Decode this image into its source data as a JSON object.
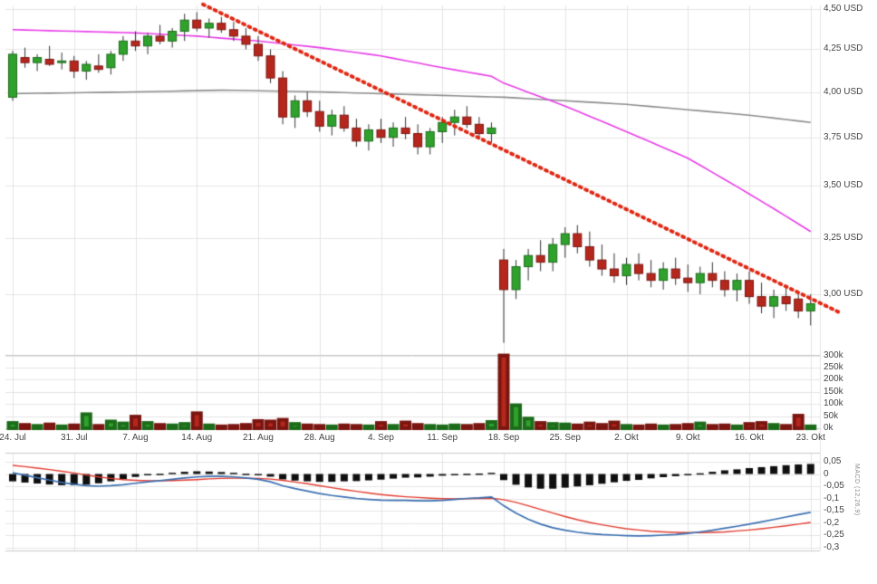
{
  "chart_data": {
    "type": "candlestick",
    "currency": "USD",
    "x_axis": {
      "num_candles": 66,
      "tick_labels": [
        "24. Jul",
        "31. Jul",
        "7. Aug",
        "14. Aug",
        "21. Aug",
        "28. Aug",
        "4. Sep",
        "11. Sep",
        "18. Sep",
        "25. Sep",
        "2. Okt",
        "9. Okt",
        "16. Okt",
        "23. Okt"
      ],
      "tick_indices": [
        0,
        5,
        10,
        15,
        20,
        25,
        30,
        35,
        40,
        45,
        50,
        55,
        60,
        65
      ]
    },
    "price_axis": {
      "scale": "log",
      "side": "right",
      "tick_values": [
        4.5,
        4.25,
        4.0,
        3.75,
        3.5,
        3.25,
        3.0
      ],
      "tick_labels": [
        "4,50 USD",
        "4,25 USD",
        "4,00 USD",
        "3,75 USD",
        "3,50 USD",
        "3,25 USD",
        "3,00 USD"
      ]
    },
    "candles_ohlc": [
      [
        3.97,
        4.24,
        3.95,
        4.22
      ],
      [
        4.2,
        4.26,
        4.14,
        4.17
      ],
      [
        4.17,
        4.22,
        4.12,
        4.2
      ],
      [
        4.19,
        4.27,
        4.15,
        4.16
      ],
      [
        4.17,
        4.23,
        4.13,
        4.18
      ],
      [
        4.18,
        4.21,
        4.08,
        4.12
      ],
      [
        4.12,
        4.18,
        4.07,
        4.16
      ],
      [
        4.15,
        4.22,
        4.11,
        4.13
      ],
      [
        4.14,
        4.24,
        4.1,
        4.22
      ],
      [
        4.22,
        4.33,
        4.18,
        4.3
      ],
      [
        4.3,
        4.36,
        4.24,
        4.27
      ],
      [
        4.27,
        4.35,
        4.22,
        4.33
      ],
      [
        4.33,
        4.4,
        4.28,
        4.3
      ],
      [
        4.3,
        4.38,
        4.26,
        4.36
      ],
      [
        4.36,
        4.47,
        4.3,
        4.43
      ],
      [
        4.43,
        4.48,
        4.36,
        4.38
      ],
      [
        4.38,
        4.44,
        4.32,
        4.41
      ],
      [
        4.41,
        4.45,
        4.35,
        4.37
      ],
      [
        4.37,
        4.42,
        4.3,
        4.33
      ],
      [
        4.33,
        4.38,
        4.25,
        4.28
      ],
      [
        4.28,
        4.33,
        4.18,
        4.21
      ],
      [
        4.21,
        4.25,
        4.05,
        4.08
      ],
      [
        4.08,
        4.12,
        3.82,
        3.86
      ],
      [
        3.86,
        3.98,
        3.8,
        3.95
      ],
      [
        3.95,
        4.0,
        3.86,
        3.89
      ],
      [
        3.89,
        3.95,
        3.78,
        3.81
      ],
      [
        3.81,
        3.9,
        3.76,
        3.87
      ],
      [
        3.87,
        3.92,
        3.78,
        3.8
      ],
      [
        3.8,
        3.85,
        3.7,
        3.73
      ],
      [
        3.73,
        3.82,
        3.68,
        3.79
      ],
      [
        3.79,
        3.85,
        3.72,
        3.75
      ],
      [
        3.75,
        3.83,
        3.7,
        3.8
      ],
      [
        3.8,
        3.86,
        3.74,
        3.77
      ],
      [
        3.77,
        3.82,
        3.66,
        3.7
      ],
      [
        3.7,
        3.8,
        3.66,
        3.78
      ],
      [
        3.78,
        3.86,
        3.72,
        3.83
      ],
      [
        3.83,
        3.9,
        3.76,
        3.86
      ],
      [
        3.86,
        3.92,
        3.8,
        3.82
      ],
      [
        3.82,
        3.86,
        3.74,
        3.77
      ],
      [
        3.77,
        3.83,
        3.72,
        3.8
      ],
      [
        3.15,
        3.2,
        2.8,
        3.02
      ],
      [
        3.02,
        3.15,
        2.98,
        3.12
      ],
      [
        3.12,
        3.2,
        3.06,
        3.17
      ],
      [
        3.17,
        3.24,
        3.1,
        3.14
      ],
      [
        3.14,
        3.25,
        3.1,
        3.22
      ],
      [
        3.22,
        3.3,
        3.16,
        3.27
      ],
      [
        3.27,
        3.31,
        3.18,
        3.21
      ],
      [
        3.21,
        3.28,
        3.12,
        3.15
      ],
      [
        3.15,
        3.22,
        3.08,
        3.11
      ],
      [
        3.11,
        3.18,
        3.05,
        3.08
      ],
      [
        3.08,
        3.16,
        3.04,
        3.13
      ],
      [
        3.13,
        3.18,
        3.06,
        3.09
      ],
      [
        3.09,
        3.15,
        3.03,
        3.06
      ],
      [
        3.06,
        3.14,
        3.02,
        3.11
      ],
      [
        3.11,
        3.16,
        3.04,
        3.07
      ],
      [
        3.07,
        3.13,
        3.01,
        3.05
      ],
      [
        3.05,
        3.12,
        3.0,
        3.09
      ],
      [
        3.09,
        3.14,
        3.03,
        3.06
      ],
      [
        3.06,
        3.1,
        2.99,
        3.02
      ],
      [
        3.02,
        3.09,
        2.97,
        3.06
      ],
      [
        3.06,
        3.1,
        2.96,
        2.99
      ],
      [
        2.99,
        3.05,
        2.92,
        2.95
      ],
      [
        2.95,
        3.02,
        2.9,
        2.99
      ],
      [
        2.99,
        3.03,
        2.93,
        2.96
      ],
      [
        2.98,
        3.01,
        2.9,
        2.93
      ],
      [
        2.93,
        3.0,
        2.87,
        2.96
      ]
    ],
    "volume_panel": {
      "unit": "k",
      "values_k": [
        22,
        14,
        10,
        16,
        8,
        12,
        58,
        10,
        28,
        20,
        48,
        22,
        14,
        12,
        18,
        62,
        12,
        8,
        10,
        14,
        30,
        28,
        35,
        18,
        12,
        10,
        8,
        12,
        10,
        8,
        22,
        10,
        24,
        14,
        10,
        8,
        12,
        10,
        14,
        26,
        300,
        95,
        40,
        22,
        18,
        16,
        12,
        20,
        14,
        24,
        10,
        8,
        12,
        8,
        10,
        14,
        20,
        10,
        12,
        8,
        18,
        22,
        14,
        10,
        52,
        8
      ],
      "tick_values": [
        300,
        250,
        200,
        150,
        100,
        50,
        0
      ],
      "tick_labels": [
        "300k",
        "250k",
        "200k",
        "150k",
        "100k",
        "50k",
        "0k"
      ]
    },
    "overlays": {
      "trendline": {
        "style": "thick-dotted",
        "color": "#e02814",
        "from": {
          "index": 15.5,
          "price": 4.53
        },
        "to": {
          "index": 67.5,
          "price": 2.92
        }
      },
      "ma_fast": {
        "color": "#e73ce7",
        "points": [
          [
            0,
            4.37
          ],
          [
            5,
            4.36
          ],
          [
            10,
            4.35
          ],
          [
            15,
            4.33
          ],
          [
            20,
            4.3
          ],
          [
            25,
            4.26
          ],
          [
            30,
            4.21
          ],
          [
            35,
            4.14
          ],
          [
            39,
            4.09
          ],
          [
            40,
            4.05
          ],
          [
            45,
            3.92
          ],
          [
            50,
            3.78
          ],
          [
            55,
            3.64
          ],
          [
            60,
            3.46
          ],
          [
            65,
            3.28
          ]
        ]
      },
      "ma_slow": {
        "color": "#8c8c8c",
        "points": [
          [
            0,
            3.99
          ],
          [
            10,
            4.0
          ],
          [
            17,
            4.01
          ],
          [
            25,
            4.0
          ],
          [
            30,
            3.99
          ],
          [
            35,
            3.98
          ],
          [
            40,
            3.97
          ],
          [
            45,
            3.95
          ],
          [
            50,
            3.93
          ],
          [
            55,
            3.9
          ],
          [
            60,
            3.87
          ],
          [
            65,
            3.83
          ]
        ]
      }
    },
    "macd_panel": {
      "label": "MACD (12,26,9)",
      "tick_values": [
        0.05,
        0,
        -0.05,
        -0.1,
        -0.15,
        -0.2,
        -0.25,
        -0.3
      ],
      "tick_labels": [
        "0,05",
        "0",
        "-0,05",
        "-0,1",
        "-0,15",
        "-0,2",
        "-0,25",
        "-0,3"
      ],
      "macd_line": [
        0.005,
        -0.005,
        -0.015,
        -0.025,
        -0.035,
        -0.042,
        -0.048,
        -0.05,
        -0.048,
        -0.044,
        -0.038,
        -0.032,
        -0.027,
        -0.022,
        -0.016,
        -0.012,
        -0.01,
        -0.01,
        -0.012,
        -0.016,
        -0.022,
        -0.032,
        -0.048,
        -0.06,
        -0.07,
        -0.08,
        -0.088,
        -0.094,
        -0.1,
        -0.104,
        -0.107,
        -0.108,
        -0.108,
        -0.11,
        -0.11,
        -0.108,
        -0.104,
        -0.1,
        -0.098,
        -0.094,
        -0.13,
        -0.16,
        -0.185,
        -0.205,
        -0.22,
        -0.23,
        -0.238,
        -0.244,
        -0.248,
        -0.25,
        -0.252,
        -0.253,
        -0.252,
        -0.25,
        -0.248,
        -0.243,
        -0.237,
        -0.23,
        -0.222,
        -0.214,
        -0.205,
        -0.196,
        -0.186,
        -0.176,
        -0.166,
        -0.157
      ],
      "signal_line": [
        0.035,
        0.03,
        0.024,
        0.018,
        0.011,
        0.004,
        -0.004,
        -0.012,
        -0.018,
        -0.023,
        -0.026,
        -0.028,
        -0.028,
        -0.027,
        -0.025,
        -0.023,
        -0.02,
        -0.018,
        -0.017,
        -0.017,
        -0.018,
        -0.021,
        -0.026,
        -0.033,
        -0.04,
        -0.048,
        -0.056,
        -0.064,
        -0.071,
        -0.078,
        -0.084,
        -0.089,
        -0.093,
        -0.096,
        -0.099,
        -0.101,
        -0.102,
        -0.101,
        -0.1,
        -0.099,
        -0.105,
        -0.116,
        -0.13,
        -0.145,
        -0.16,
        -0.174,
        -0.187,
        -0.198,
        -0.208,
        -0.216,
        -0.224,
        -0.229,
        -0.234,
        -0.237,
        -0.239,
        -0.24,
        -0.24,
        -0.239,
        -0.237,
        -0.233,
        -0.229,
        -0.224,
        -0.218,
        -0.212,
        -0.205,
        -0.198
      ],
      "histogram": [
        -0.03,
        -0.035,
        -0.039,
        -0.043,
        -0.046,
        -0.046,
        -0.044,
        -0.038,
        -0.03,
        -0.021,
        -0.012,
        -0.004,
        0.001,
        0.005,
        0.009,
        0.011,
        0.01,
        0.008,
        0.005,
        0.001,
        -0.004,
        -0.011,
        -0.022,
        -0.027,
        -0.03,
        -0.032,
        -0.032,
        -0.03,
        -0.029,
        -0.026,
        -0.023,
        -0.019,
        -0.015,
        -0.014,
        -0.011,
        -0.007,
        -0.002,
        0.001,
        0.002,
        0.005,
        -0.025,
        -0.044,
        -0.055,
        -0.06,
        -0.06,
        -0.056,
        -0.051,
        -0.046,
        -0.04,
        -0.034,
        -0.028,
        -0.024,
        -0.018,
        -0.013,
        -0.009,
        -0.003,
        0.003,
        0.009,
        0.015,
        0.019,
        0.024,
        0.028,
        0.032,
        0.036,
        0.039,
        0.041
      ]
    },
    "colors": {
      "up": "#2fa12c",
      "up_border": "#1c6b1a",
      "down": "#b5271d",
      "down_border": "#7a1510",
      "wick": "#333333",
      "grid": "#e4e4e4",
      "panel_border": "#c8c8c8",
      "macd_line": "#3a6fb0",
      "signal_line": "#e23b2e",
      "histogram": "#0f0f0f",
      "trend": "#e02814",
      "axis_text": "#444444"
    }
  }
}
